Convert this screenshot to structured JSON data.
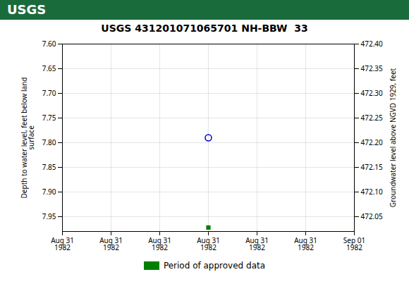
{
  "chart_data": {
    "type": "scatter",
    "title": "USGS 431201071065701 NH-BBW  33",
    "annotations": [
      "USGS"
    ],
    "categories": [
      "Aug 31\n1982",
      "Aug 31\n1982",
      "Aug 31\n1982",
      "Aug 31\n1982",
      "Aug 31\n1982",
      "Aug 31\n1982",
      "Sep 01\n1982"
    ],
    "y_label": "Depth to water level, feet below land\nsurface",
    "y2_label": "Groundwater level above NGVD 1929, feet",
    "ylim": [
      7.98,
      7.6
    ],
    "yticks": [
      {
        "value": 7.6,
        "label": "7.60"
      },
      {
        "value": 7.65,
        "label": "7.65"
      },
      {
        "value": 7.7,
        "label": "7.70"
      },
      {
        "value": 7.75,
        "label": "7.75"
      },
      {
        "value": 7.8,
        "label": "7.80"
      },
      {
        "value": 7.85,
        "label": "7.85"
      },
      {
        "value": 7.9,
        "label": "7.90"
      },
      {
        "value": 7.95,
        "label": "7.95"
      }
    ],
    "y2lim": [
      472.02,
      472.4
    ],
    "y2ticks": [
      472.05,
      {
        "value": 472.1,
        "label": "472.10"
      },
      472.15,
      {
        "value": 472.2,
        "label": "472.20"
      },
      472.25,
      {
        "value": 472.3,
        "label": "472.30"
      },
      472.35,
      {
        "value": 472.4,
        "label": "472.40"
      }
    ],
    "series": [
      {
        "color": "#0000cc",
        "marker": "circle",
        "values": [
          null,
          null,
          null,
          7.79,
          null,
          null,
          null
        ]
      },
      {
        "name": "Period of approved data",
        "color": "#008000",
        "marker": "square",
        "values": [
          null,
          null,
          null,
          7.972,
          null,
          null,
          null
        ]
      }
    ],
    "grid": true,
    "legend": "bottom"
  }
}
